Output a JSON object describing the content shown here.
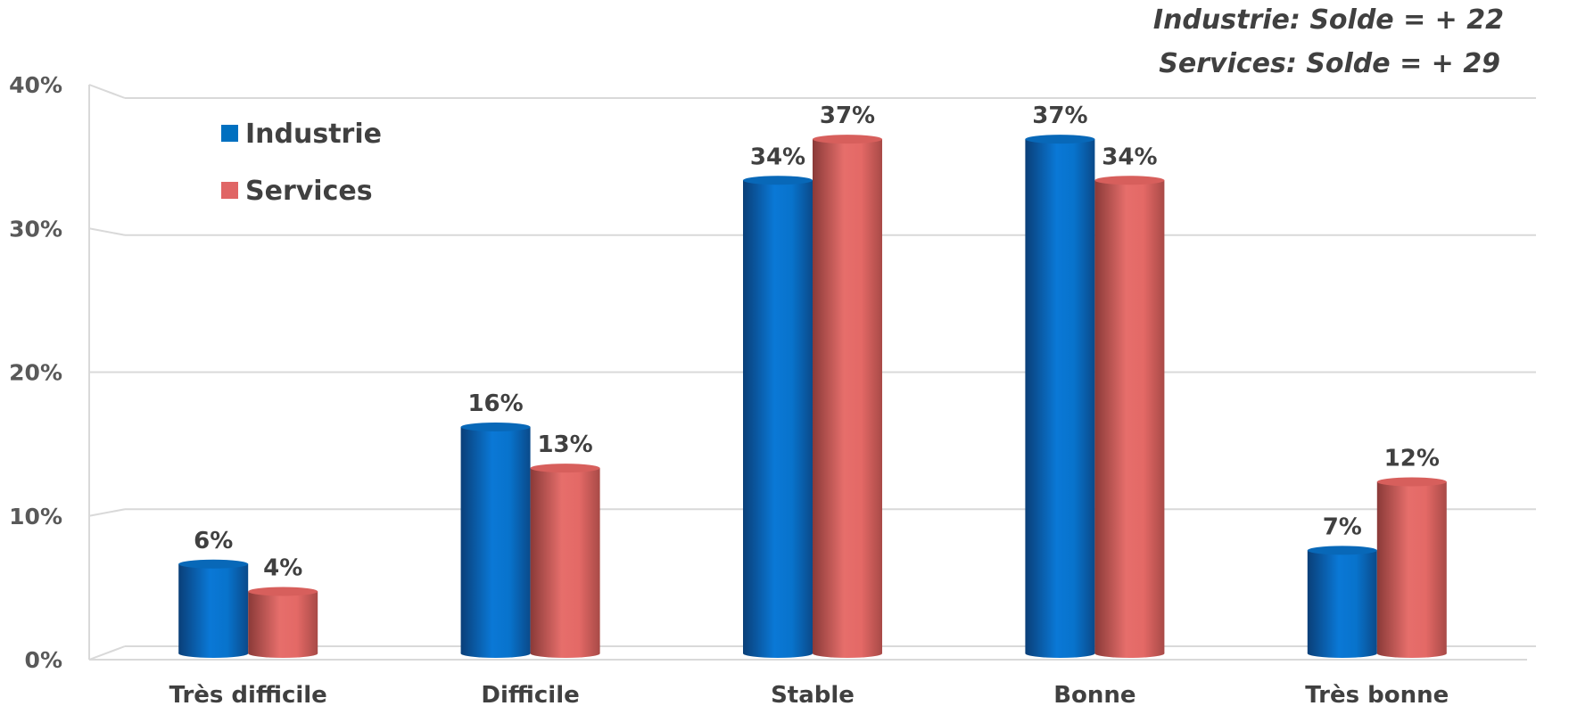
{
  "chart_data": {
    "type": "bar",
    "categories": [
      "Très difficile",
      "Difficile",
      "Stable",
      "Bonne",
      "Très bonne"
    ],
    "series": [
      {
        "name": "Industrie",
        "values": [
          6,
          16,
          34,
          37,
          7
        ],
        "labels": [
          "6%",
          "16%",
          "34%",
          "37%",
          "7%"
        ],
        "color": "#0070c0"
      },
      {
        "name": "Services",
        "values": [
          4,
          13,
          37,
          34,
          12
        ],
        "labels": [
          "4%",
          "13%",
          "37%",
          "34%",
          "12%"
        ],
        "color": "#e06666"
      }
    ],
    "yticks": [
      "0%",
      "10%",
      "20%",
      "30%",
      "40%"
    ],
    "ylim": [
      0,
      40
    ],
    "grid": true,
    "legend": "top-left",
    "annotations": [
      "Industrie: Solde = + 22",
      "Services: Solde = + 29"
    ]
  }
}
